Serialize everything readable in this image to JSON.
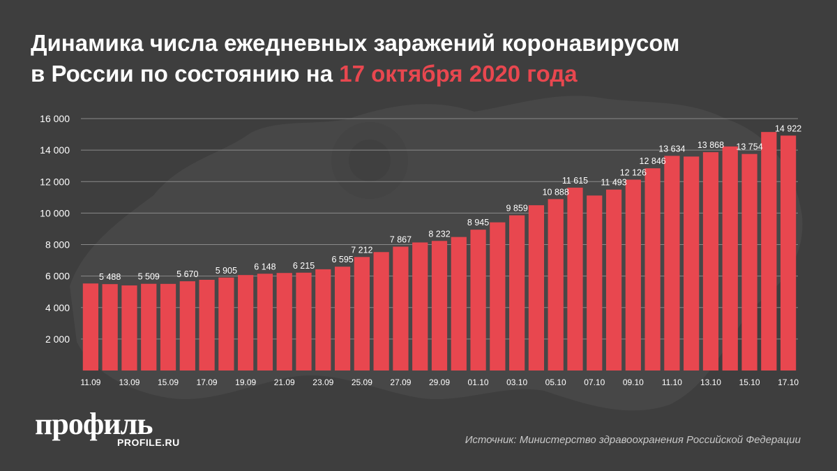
{
  "header": {
    "title_part1": "Динамика числа ежедневных заражений коронавирусом",
    "title_part2": "в России по состоянию на ",
    "title_accent": "17 октября 2020 года"
  },
  "colors": {
    "background": "#3e3e3e",
    "bar": "#e8474f",
    "accent": "#e8474f",
    "text": "#ffffff",
    "grid": "#8a8a8a"
  },
  "chart_data": {
    "type": "bar",
    "categories": [
      "11.09",
      "12.09",
      "13.09",
      "14.09",
      "15.09",
      "16.09",
      "17.09",
      "18.09",
      "19.09",
      "20.09",
      "21.09",
      "22.09",
      "23.09",
      "24.09",
      "25.09",
      "26.09",
      "27.09",
      "28.09",
      "29.09",
      "30.09",
      "01.10",
      "02.10",
      "03.10",
      "04.10",
      "05.10",
      "06.10",
      "07.10",
      "08.10",
      "09.10",
      "10.10",
      "11.10",
      "12.10",
      "13.10",
      "14.10",
      "15.10",
      "16.10",
      "17.10"
    ],
    "values": [
      5529,
      5488,
      5405,
      5509,
      5504,
      5670,
      5762,
      5905,
      6065,
      6148,
      6196,
      6215,
      6431,
      6595,
      7212,
      7523,
      7867,
      8135,
      8232,
      8481,
      8945,
      9412,
      9859,
      10499,
      10888,
      11615,
      11115,
      11493,
      12126,
      12846,
      13634,
      13592,
      13868,
      14231,
      13754,
      15150,
      14922
    ],
    "data_labels": {
      "1": "5 488",
      "3": "5 509",
      "5": "5 670",
      "7": "5 905",
      "9": "6 148",
      "11": "6 215",
      "13": "6 595",
      "14": "7 212",
      "16": "7 867",
      "18": "8 232",
      "20": "8 945",
      "22": "9 859",
      "24": "10 888",
      "25": "11 615",
      "27": "11 493",
      "28": "12 126",
      "29": "12 846",
      "30": "13 634",
      "32": "13 868",
      "34": "13 754",
      "36": "14 922"
    },
    "x_tick_labels": [
      "11.09",
      "13.09",
      "15.09",
      "17.09",
      "19.09",
      "21.09",
      "23.09",
      "25.09",
      "27.09",
      "29.09",
      "01.10",
      "03.10",
      "05.10",
      "07.10",
      "09.10",
      "11.10",
      "13.10",
      "15.10",
      "17.10"
    ],
    "y_ticks": [
      2000,
      4000,
      6000,
      8000,
      10000,
      12000,
      14000,
      16000
    ],
    "y_tick_labels": [
      "2 000",
      "4 000",
      "6 000",
      "8 000",
      "10 000",
      "12 000",
      "14 000",
      "16 000"
    ],
    "ylim": [
      0,
      16000
    ],
    "grid": true,
    "legend": "none"
  },
  "footer": {
    "logo": "профиль",
    "logo_sub": "PROFILE.RU",
    "source": "Источник: Министерство здравоохранения Российской Федерации"
  }
}
